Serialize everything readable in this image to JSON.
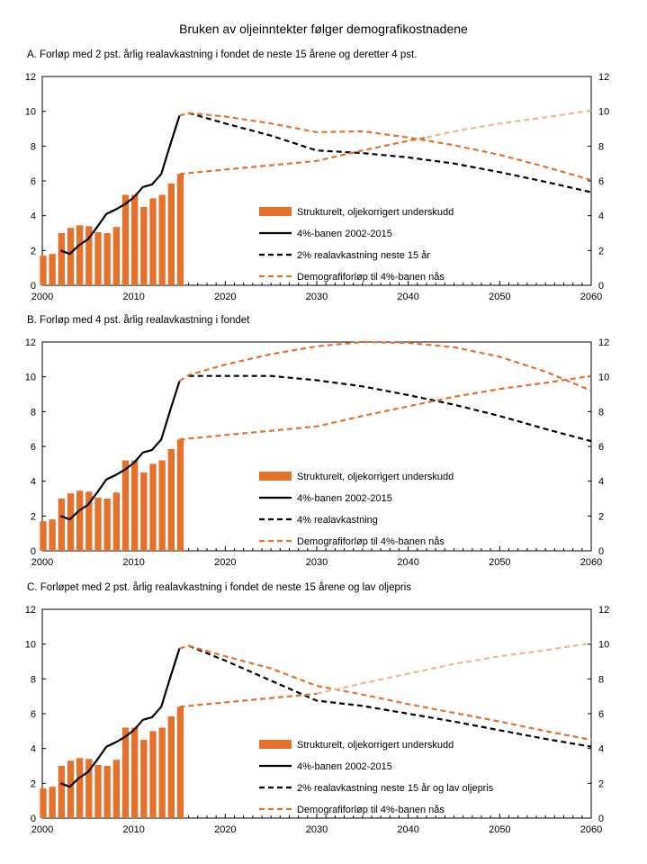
{
  "title": "Bruken av oljeinntekter følger demografikostnadene",
  "chart_data": [
    {
      "type": "bar",
      "panel": "A",
      "title": "A. Forløp med 2 pst. årlig realavkastning i fondet de neste 15 årene og deretter 4 pst.",
      "xlim": [
        2000,
        2060
      ],
      "ylim": [
        0,
        12
      ],
      "xticks": [
        "2000",
        "2010",
        "2020",
        "2030",
        "2040",
        "2050",
        "2060"
      ],
      "yticks": [
        "0",
        "2",
        "4",
        "6",
        "8",
        "10",
        "12"
      ],
      "bars": {
        "name": "Strukturelt, oljekorrigert underskudd",
        "color": "#e4722d",
        "x": [
          2000,
          2001,
          2002,
          2003,
          2004,
          2005,
          2006,
          2007,
          2008,
          2009,
          2010,
          2011,
          2012,
          2013,
          2014,
          2015
        ],
        "values": [
          1.7,
          1.8,
          3.0,
          3.3,
          3.45,
          3.4,
          3.05,
          3.0,
          3.35,
          5.2,
          5.2,
          4.5,
          5.0,
          5.2,
          5.85,
          6.4
        ]
      },
      "series": [
        {
          "name": "4%-banen 2002-2015",
          "style": "solid",
          "color": "#000000",
          "x": [
            2002,
            2003,
            2004,
            2005,
            2006,
            2007,
            2008,
            2009,
            2010,
            2011,
            2012,
            2013,
            2014,
            2015
          ],
          "values": [
            2.0,
            1.8,
            2.3,
            2.65,
            3.35,
            4.1,
            4.35,
            4.65,
            5.05,
            5.65,
            5.8,
            6.4,
            8.1,
            9.75
          ]
        },
        {
          "name": "2% realavkastning neste 15 år",
          "style": "dashed",
          "color": "#000000",
          "x": [
            2016,
            2020,
            2025,
            2030,
            2035,
            2040,
            2045,
            2050,
            2055,
            2060
          ],
          "values": [
            9.9,
            9.3,
            8.6,
            7.75,
            7.6,
            7.35,
            7.0,
            6.5,
            5.95,
            5.35
          ]
        },
        {
          "name": "Demografiforløp til 4%-banen nås",
          "style": "dashed",
          "color": "#e4722d",
          "x": [
            2015,
            2016,
            2020,
            2025,
            2030,
            2035,
            2040,
            2045,
            2050,
            2055,
            2060
          ],
          "values": [
            9.75,
            9.9,
            9.7,
            9.3,
            8.8,
            8.85,
            8.5,
            8.05,
            7.5,
            6.8,
            6.05
          ]
        },
        {
          "name": "Demografiforløp til 4%-banen nås",
          "style": "dashed",
          "color": "#e4722d",
          "x": [
            2015,
            2020,
            2025,
            2030,
            2035,
            2040,
            2042
          ],
          "values": [
            6.4,
            6.65,
            6.9,
            7.15,
            7.75,
            8.3,
            8.5
          ]
        },
        {
          "name": "",
          "style": "dashed",
          "color": "#f3b695",
          "x": [
            2042,
            2045,
            2050,
            2055,
            2060
          ],
          "values": [
            8.5,
            8.85,
            9.3,
            9.65,
            10.05
          ]
        }
      ],
      "legend": [
        {
          "kind": "bar",
          "label": "Strukturelt, oljekorrigert underskudd",
          "color": "#e4722d"
        },
        {
          "kind": "solid",
          "label": "4%-banen 2002-2015",
          "color": "#000000"
        },
        {
          "kind": "dashed",
          "label": "2% realavkastning neste 15 år",
          "color": "#000000"
        },
        {
          "kind": "dashed",
          "label": "Demografiforløp til 4%-banen nås",
          "color": "#e4722d"
        }
      ]
    },
    {
      "type": "bar",
      "panel": "B",
      "title": "B. Forløp med 4 pst. årlig realavkastning i fondet",
      "xlim": [
        2000,
        2060
      ],
      "ylim": [
        0,
        12
      ],
      "xticks": [
        "2000",
        "2010",
        "2020",
        "2030",
        "2040",
        "2050",
        "2060"
      ],
      "yticks": [
        "0",
        "2",
        "4",
        "6",
        "8",
        "10",
        "12"
      ],
      "bars": {
        "name": "Strukturelt, oljekorrigert underskudd",
        "color": "#e4722d",
        "x": [
          2000,
          2001,
          2002,
          2003,
          2004,
          2005,
          2006,
          2007,
          2008,
          2009,
          2010,
          2011,
          2012,
          2013,
          2014,
          2015
        ],
        "values": [
          1.7,
          1.8,
          3.0,
          3.3,
          3.45,
          3.4,
          3.05,
          3.0,
          3.35,
          5.2,
          5.2,
          4.5,
          5.0,
          5.2,
          5.85,
          6.4
        ]
      },
      "series": [
        {
          "name": "4%-banen 2002-2015",
          "style": "solid",
          "color": "#000000",
          "x": [
            2002,
            2003,
            2004,
            2005,
            2006,
            2007,
            2008,
            2009,
            2010,
            2011,
            2012,
            2013,
            2014,
            2015
          ],
          "values": [
            2.0,
            1.8,
            2.3,
            2.65,
            3.35,
            4.1,
            4.35,
            4.65,
            5.05,
            5.65,
            5.8,
            6.4,
            8.1,
            9.75
          ]
        },
        {
          "name": "4% realavkastning",
          "style": "dashed",
          "color": "#000000",
          "x": [
            2016,
            2020,
            2025,
            2030,
            2035,
            2040,
            2045,
            2050,
            2055,
            2060
          ],
          "values": [
            10.05,
            10.05,
            10.05,
            9.8,
            9.45,
            8.95,
            8.4,
            7.75,
            7.0,
            6.3
          ]
        },
        {
          "name": "Demografiforløp til 4%-banen nås",
          "style": "dashed",
          "color": "#e4722d",
          "x": [
            2015,
            2016,
            2020,
            2025,
            2030,
            2035,
            2040,
            2045,
            2050,
            2055,
            2060
          ],
          "values": [
            9.75,
            10.1,
            10.7,
            11.3,
            11.75,
            12.0,
            11.95,
            11.7,
            11.15,
            10.3,
            9.2
          ]
        },
        {
          "name": "Demografiforløp til 4%-banen nås",
          "style": "dashed",
          "color": "#e4722d",
          "x": [
            2015,
            2020,
            2025,
            2030,
            2035,
            2040,
            2045,
            2050,
            2055,
            2060
          ],
          "values": [
            6.4,
            6.65,
            6.9,
            7.15,
            7.75,
            8.3,
            8.85,
            9.3,
            9.65,
            10.05
          ]
        }
      ],
      "legend": [
        {
          "kind": "bar",
          "label": "Strukturelt, oljekorrigert underskudd",
          "color": "#e4722d"
        },
        {
          "kind": "solid",
          "label": "4%-banen 2002-2015",
          "color": "#000000"
        },
        {
          "kind": "dashed",
          "label": "4% realavkastning",
          "color": "#000000"
        },
        {
          "kind": "dashed",
          "label": "Demografiforløp til 4%-banen nås",
          "color": "#e4722d"
        }
      ]
    },
    {
      "type": "bar",
      "panel": "C",
      "title": "C. Forløpet med 2 pst. årlig realavkastning i fondet de neste 15 årene og lav oljepris",
      "xlim": [
        2000,
        2060
      ],
      "ylim": [
        0,
        12
      ],
      "xticks": [
        "2000",
        "2010",
        "2020",
        "2030",
        "2040",
        "2050",
        "2060"
      ],
      "yticks": [
        "0",
        "2",
        "4",
        "6",
        "8",
        "10",
        "12"
      ],
      "bars": {
        "name": "Strukturelt, oljekorrigert underskudd",
        "color": "#e4722d",
        "x": [
          2000,
          2001,
          2002,
          2003,
          2004,
          2005,
          2006,
          2007,
          2008,
          2009,
          2010,
          2011,
          2012,
          2013,
          2014,
          2015
        ],
        "values": [
          1.7,
          1.8,
          3.0,
          3.3,
          3.45,
          3.4,
          3.05,
          3.0,
          3.35,
          5.2,
          5.2,
          4.5,
          5.0,
          5.2,
          5.85,
          6.4
        ]
      },
      "series": [
        {
          "name": "4%-banen 2002-2015",
          "style": "solid",
          "color": "#000000",
          "x": [
            2002,
            2003,
            2004,
            2005,
            2006,
            2007,
            2008,
            2009,
            2010,
            2011,
            2012,
            2013,
            2014,
            2015
          ],
          "values": [
            2.0,
            1.8,
            2.3,
            2.65,
            3.35,
            4.1,
            4.35,
            4.65,
            5.05,
            5.65,
            5.8,
            6.4,
            8.1,
            9.75
          ]
        },
        {
          "name": "2% realavkastning neste 15 år og lav oljepris",
          "style": "dashed",
          "color": "#000000",
          "x": [
            2016,
            2020,
            2025,
            2030,
            2035,
            2040,
            2045,
            2050,
            2055,
            2060
          ],
          "values": [
            9.9,
            9.05,
            7.9,
            6.75,
            6.45,
            6.0,
            5.55,
            5.05,
            4.55,
            4.1
          ]
        },
        {
          "name": "Demografiforløp til 4%-banen nås",
          "style": "dashed",
          "color": "#e4722d",
          "x": [
            2015,
            2016,
            2020,
            2025,
            2030,
            2035,
            2040,
            2045,
            2050,
            2055,
            2060
          ],
          "values": [
            9.75,
            9.9,
            9.3,
            8.6,
            7.6,
            7.1,
            6.55,
            6.05,
            5.55,
            5.0,
            4.5
          ]
        },
        {
          "name": "Demografiforløp til 4%-banen nås",
          "style": "dashed",
          "color": "#e4722d",
          "x": [
            2015,
            2020,
            2025,
            2030
          ],
          "values": [
            6.4,
            6.65,
            6.9,
            7.15
          ]
        },
        {
          "name": "",
          "style": "dashed",
          "color": "#f3b695",
          "x": [
            2030,
            2035,
            2040,
            2045,
            2050,
            2055,
            2060
          ],
          "values": [
            7.15,
            7.75,
            8.3,
            8.85,
            9.3,
            9.65,
            10.05
          ]
        }
      ],
      "legend": [
        {
          "kind": "bar",
          "label": "Strukturelt, oljekorrigert underskudd",
          "color": "#e4722d"
        },
        {
          "kind": "solid",
          "label": "4%-banen 2002-2015",
          "color": "#000000"
        },
        {
          "kind": "dashed",
          "label": "2% realavkastning neste 15 år og lav oljepris",
          "color": "#000000"
        },
        {
          "kind": "dashed",
          "label": "Demografiforløp til 4%-banen nås",
          "color": "#e4722d"
        }
      ]
    }
  ]
}
